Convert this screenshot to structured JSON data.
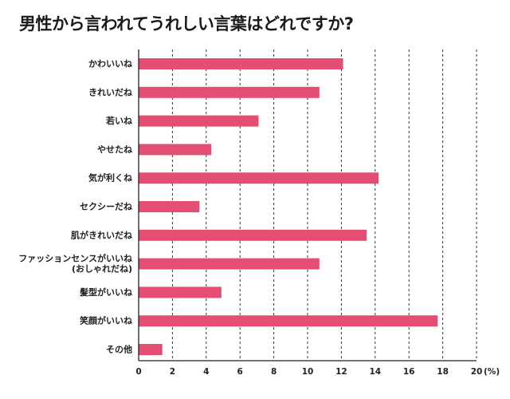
{
  "colors": {
    "bar": "#e34f73",
    "grid": "#333333",
    "axis": "#222222"
  },
  "chart_data": {
    "type": "bar",
    "orientation": "horizontal",
    "title": "男性から言われてうれしい言葉はどれですか?",
    "categories": [
      [
        "かわいいね"
      ],
      [
        "きれいだね"
      ],
      [
        "若いね"
      ],
      [
        "やせたね"
      ],
      [
        "気が利くね"
      ],
      [
        "セクシーだね"
      ],
      [
        "肌がきれいだね"
      ],
      [
        "ファッションセンスがいいね",
        "(おしゃれだね)"
      ],
      [
        "髪型がいいね"
      ],
      [
        "笑顔がいいね"
      ],
      [
        "その他"
      ]
    ],
    "values": [
      12.1,
      10.7,
      7.1,
      4.3,
      14.2,
      3.6,
      13.5,
      10.7,
      4.9,
      17.7,
      1.4
    ],
    "xlim": [
      0,
      20
    ],
    "xticks": [
      "0",
      "2",
      "4",
      "6",
      "8",
      "10",
      "12",
      "14",
      "16",
      "18",
      "20"
    ],
    "xunit": "(%)",
    "grid": "vertical dashed"
  }
}
